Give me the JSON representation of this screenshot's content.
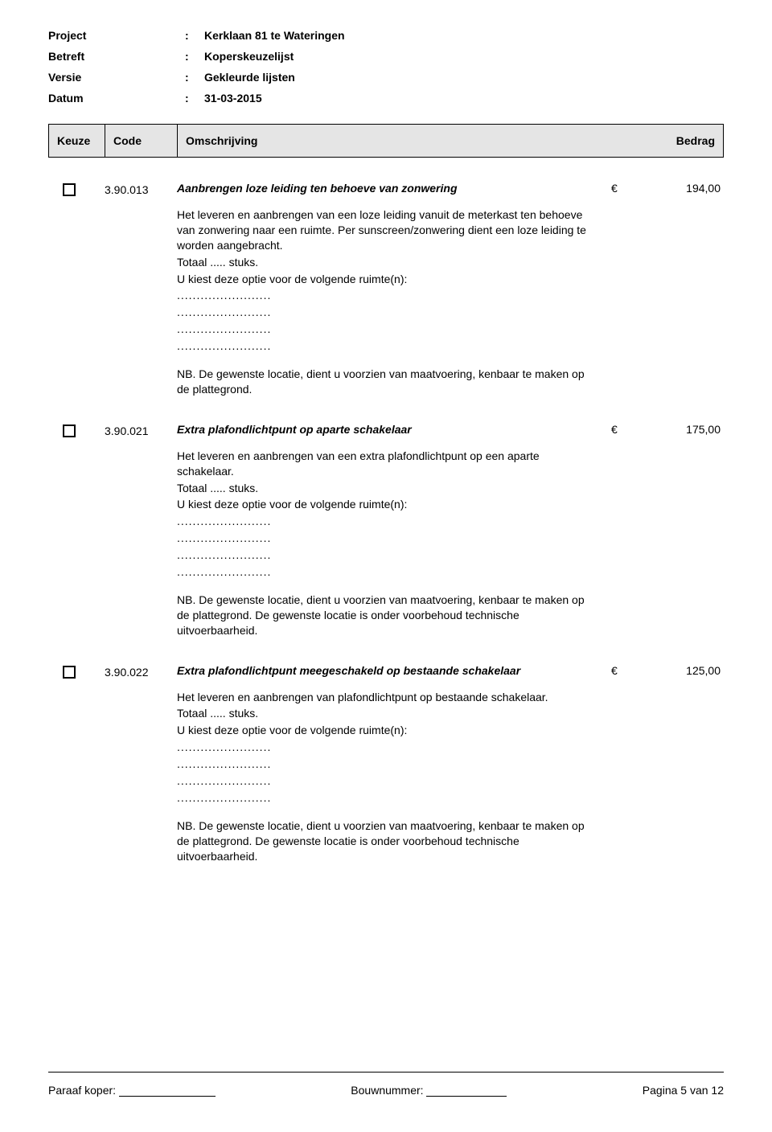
{
  "meta": {
    "project_label": "Project",
    "project_value": "Kerklaan 81 te Wateringen",
    "betreft_label": "Betreft",
    "betreft_value": "Koperskeuzelijst",
    "versie_label": "Versie",
    "versie_value": "Gekleurde lijsten",
    "datum_label": "Datum",
    "datum_value": "31-03-2015",
    "colon": ":"
  },
  "table_header": {
    "keuze": "Keuze",
    "code": "Code",
    "omschrijving": "Omschrijving",
    "bedrag": "Bedrag"
  },
  "items": [
    {
      "code": "3.90.013",
      "title": "Aanbrengen loze leiding ten behoeve van zonwering",
      "currency": "€",
      "amount": "194,00",
      "body1": "Het leveren en aanbrengen van een loze leiding vanuit de meterkast ten behoeve van zonwering naar een ruimte. Per sunscreen/zonwering dient een loze leiding te worden aangebracht.",
      "totaal": "Totaal ..... stuks.",
      "kies": "U kiest deze optie voor de volgende ruimte(n):",
      "dots": "........................",
      "nb": "NB. De gewenste locatie, dient u voorzien van maatvoering, kenbaar te maken op de plattegrond."
    },
    {
      "code": "3.90.021",
      "title": "Extra plafondlichtpunt op aparte schakelaar",
      "currency": "€",
      "amount": "175,00",
      "body1": "Het leveren en aanbrengen van een extra plafondlichtpunt op een aparte schakelaar.",
      "totaal": "Totaal ..... stuks.",
      "kies": "U kiest deze optie voor de volgende ruimte(n):",
      "dots": "........................",
      "nb": "NB. De gewenste locatie, dient u voorzien van maatvoering, kenbaar te maken op de plattegrond. De gewenste locatie is onder voorbehoud technische uitvoerbaarheid."
    },
    {
      "code": "3.90.022",
      "title": "Extra plafondlichtpunt meegeschakeld op bestaande schakelaar",
      "currency": "€",
      "amount": "125,00",
      "body1": "Het leveren en aanbrengen van plafondlichtpunt op bestaande schakelaar.",
      "totaal": "Totaal ..... stuks.",
      "kies": "U kiest deze optie voor de volgende ruimte(n):",
      "dots": "........................",
      "nb": "NB. De gewenste locatie, dient u voorzien van maatvoering, kenbaar te maken op de plattegrond. De gewenste locatie is onder voorbehoud technische uitvoerbaarheid."
    }
  ],
  "footer": {
    "paraaf": "Paraaf koper:",
    "bouwnummer": "Bouwnummer:",
    "page": "Pagina 5 van 12"
  }
}
